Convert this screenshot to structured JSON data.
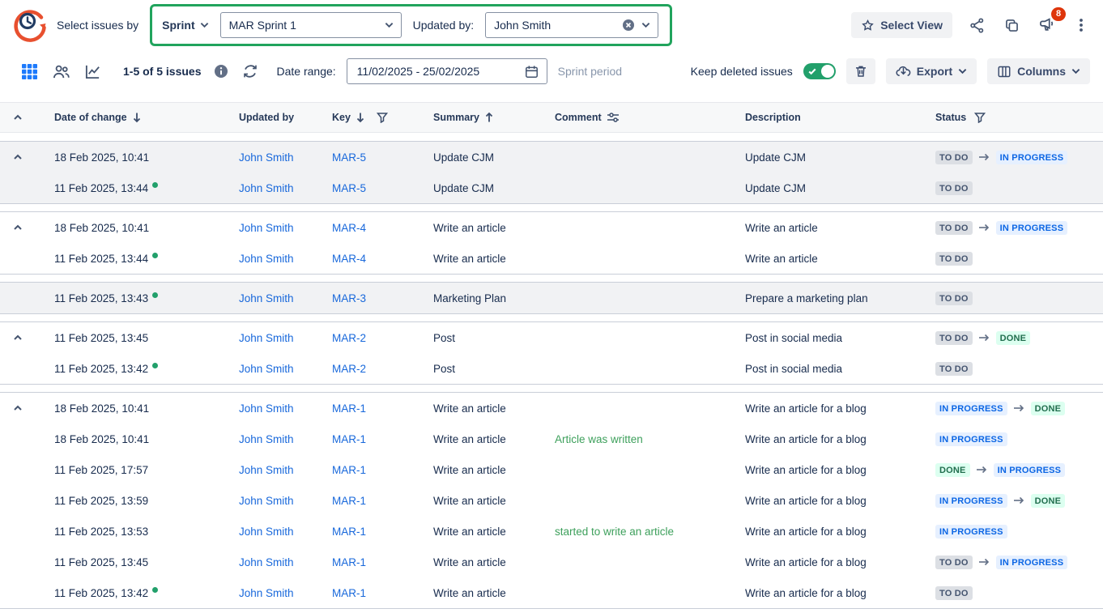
{
  "colors": {
    "link_blue": "#1868db",
    "annotation_green": "#21a45d",
    "comment_green": "#3ea05c",
    "toggle_green": "#22a06b",
    "notification_red": "#de350b",
    "active_view_blue": "#1d7afc",
    "status_todo_bg": "#dcdfe4",
    "status_todo_text": "#44546f",
    "status_inprogress_bg": "#e6f0ff",
    "status_inprogress_text": "#0c66e4",
    "status_done_bg": "#dcfff0",
    "status_done_text": "#216e4e"
  },
  "topbar": {
    "select_issues_by_label": "Select issues by",
    "sprint_dropdown_label": "Sprint",
    "sprint_select_value": "MAR Sprint 1",
    "updated_by_label": "Updated by:",
    "updated_by_value": "John Smith",
    "select_view_label": "Select View",
    "notification_count": "8"
  },
  "toolbar": {
    "issues_count": "1-5 of 5 issues",
    "date_range_label": "Date range:",
    "date_range_value": "11/02/2025 - 25/02/2025",
    "sprint_period_label": "Sprint period",
    "keep_deleted_label": "Keep deleted issues",
    "export_label": "Export",
    "columns_label": "Columns"
  },
  "table": {
    "columns": [
      "Date of change",
      "Updated by",
      "Key",
      "Summary",
      "Comment",
      "Description",
      "Status"
    ],
    "groups": [
      {
        "shaded": true,
        "rows": [
          {
            "chevron": true,
            "date": "18 Feb 2025, 10:41",
            "dot": false,
            "user": "John Smith",
            "key": "MAR-5",
            "summary": "Update CJM",
            "comment": "",
            "description": "Update CJM",
            "status": [
              "TO DO",
              "IN PROGRESS"
            ]
          },
          {
            "chevron": false,
            "date": "11 Feb 2025, 13:44",
            "dot": true,
            "user": "John Smith",
            "key": "MAR-5",
            "summary": "Update CJM",
            "comment": "",
            "description": "Update CJM",
            "status": [
              "TO DO"
            ]
          }
        ]
      },
      {
        "shaded": false,
        "rows": [
          {
            "chevron": true,
            "date": "18 Feb 2025, 10:41",
            "dot": false,
            "user": "John Smith",
            "key": "MAR-4",
            "summary": "Write an article",
            "comment": "",
            "description": "Write an article",
            "status": [
              "TO DO",
              "IN PROGRESS"
            ]
          },
          {
            "chevron": false,
            "date": "11 Feb 2025, 13:44",
            "dot": true,
            "user": "John Smith",
            "key": "MAR-4",
            "summary": "Write an article",
            "comment": "",
            "description": "Write an article",
            "status": [
              "TO DO"
            ]
          }
        ]
      },
      {
        "shaded": true,
        "rows": [
          {
            "chevron": false,
            "date": "11 Feb 2025, 13:43",
            "dot": true,
            "user": "John Smith",
            "key": "MAR-3",
            "summary": "Marketing Plan",
            "comment": "",
            "description": "Prepare a marketing plan",
            "status": [
              "TO DO"
            ]
          }
        ]
      },
      {
        "shaded": false,
        "rows": [
          {
            "chevron": true,
            "date": "11 Feb 2025, 13:45",
            "dot": false,
            "user": "John Smith",
            "key": "MAR-2",
            "summary": "Post",
            "comment": "",
            "description": "Post in social media",
            "status": [
              "TO DO",
              "DONE"
            ]
          },
          {
            "chevron": false,
            "date": "11 Feb 2025, 13:42",
            "dot": true,
            "user": "John Smith",
            "key": "MAR-2",
            "summary": "Post",
            "comment": "",
            "description": "Post in social media",
            "status": [
              "TO DO"
            ]
          }
        ]
      },
      {
        "shaded": false,
        "rows": [
          {
            "chevron": true,
            "date": "18 Feb 2025, 10:41",
            "dot": false,
            "user": "John Smith",
            "key": "MAR-1",
            "summary": "Write an article",
            "comment": "",
            "description": "Write an article for a blog",
            "status": [
              "IN PROGRESS",
              "DONE"
            ]
          },
          {
            "chevron": false,
            "date": "18 Feb 2025, 10:41",
            "dot": false,
            "user": "John Smith",
            "key": "MAR-1",
            "summary": "Write an article",
            "comment": "Article was written",
            "description": "Write an article for a blog",
            "status": [
              "IN PROGRESS"
            ]
          },
          {
            "chevron": false,
            "date": "11 Feb 2025, 17:57",
            "dot": false,
            "user": "John Smith",
            "key": "MAR-1",
            "summary": "Write an article",
            "comment": "",
            "description": "Write an article for a blog",
            "status": [
              "DONE",
              "IN PROGRESS"
            ]
          },
          {
            "chevron": false,
            "date": "11 Feb 2025, 13:59",
            "dot": false,
            "user": "John Smith",
            "key": "MAR-1",
            "summary": "Write an article",
            "comment": "",
            "description": "Write an article for a blog",
            "status": [
              "IN PROGRESS",
              "DONE"
            ]
          },
          {
            "chevron": false,
            "date": "11 Feb 2025, 13:53",
            "dot": false,
            "user": "John Smith",
            "key": "MAR-1",
            "summary": "Write an article",
            "comment": "started to write an article",
            "description": "Write an article for a blog",
            "status": [
              "IN PROGRESS"
            ]
          },
          {
            "chevron": false,
            "date": "11 Feb 2025, 13:45",
            "dot": false,
            "user": "John Smith",
            "key": "MAR-1",
            "summary": "Write an article",
            "comment": "",
            "description": "Write an article for a blog",
            "status": [
              "TO DO",
              "IN PROGRESS"
            ]
          },
          {
            "chevron": false,
            "date": "11 Feb 2025, 13:42",
            "dot": true,
            "user": "John Smith",
            "key": "MAR-1",
            "summary": "Write an article",
            "comment": "",
            "description": "Write an article for a blog",
            "status": [
              "TO DO"
            ]
          }
        ]
      }
    ]
  }
}
